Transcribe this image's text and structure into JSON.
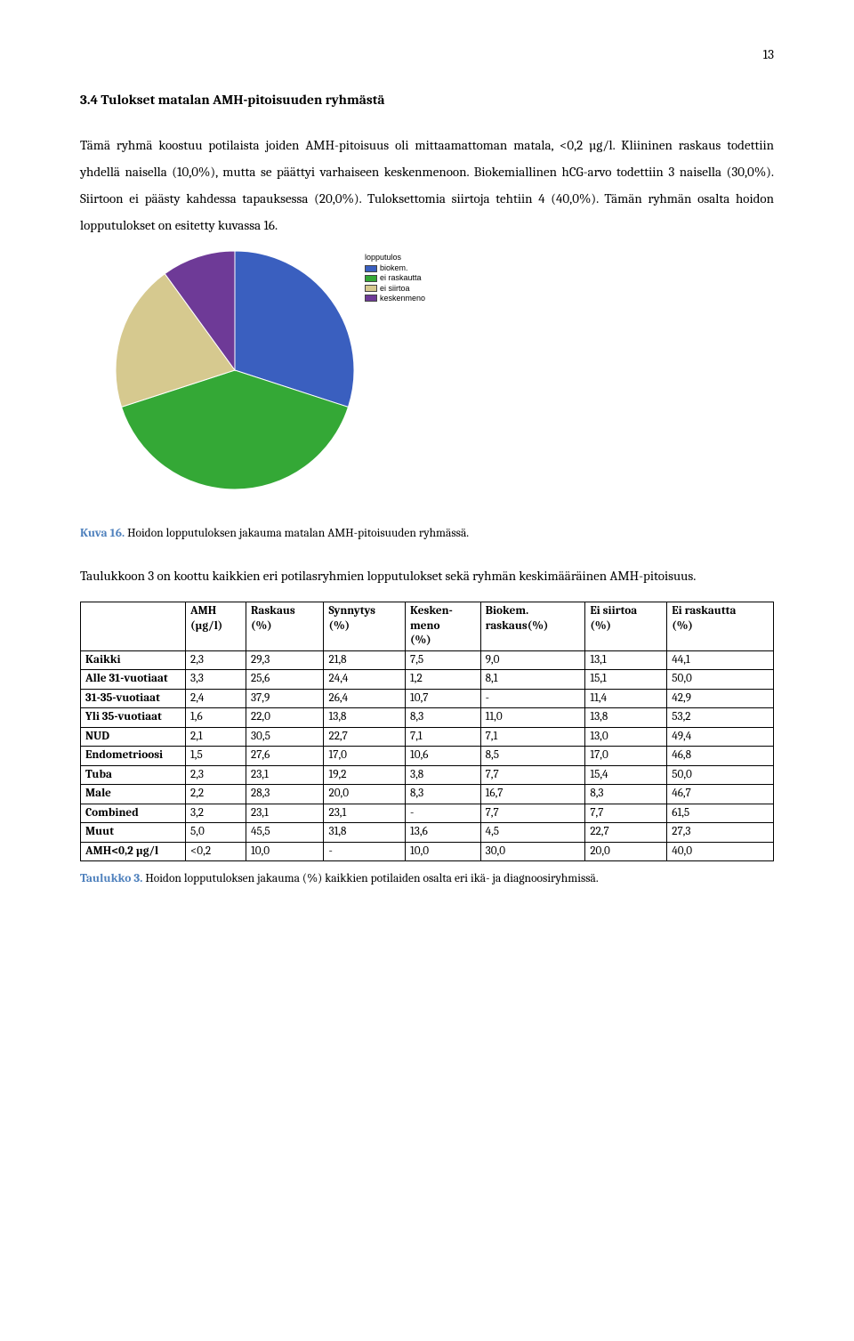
{
  "page_number": "13",
  "heading": "3.4 Tulokset matalan AMH-pitoisuuden ryhmästä",
  "paragraph1": "Tämä ryhmä koostuu potilaista joiden AMH-pitoisuus oli mittaamattoman matala, <0,2 µg/l. Kliininen raskaus todettiin yhdellä naisella (10,0%), mutta se päättyi varhaiseen keskenmenoon. Biokemiallinen hCG-arvo todettiin 3 naisella (30,0%). Siirtoon ei päästy kahdessa tapauksessa (20,0%). Tuloksettomia siirtoja tehtiin 4 (40,0%). Tämän ryhmän osalta hoidon lopputulokset on esitetty kuvassa 16.",
  "pie": {
    "size": 268,
    "slices": [
      {
        "label": "biokem.",
        "value": 30,
        "color": "#3a5fbf"
      },
      {
        "label": "ei raskautta",
        "value": 40,
        "color": "#34a836"
      },
      {
        "label": "ei siirtoa",
        "value": 20,
        "color": "#d6c98f"
      },
      {
        "label": "keskenmeno",
        "value": 10,
        "color": "#6e3a97"
      }
    ],
    "legend_title": "lopputulos",
    "start_angle_deg": -90,
    "stroke": "#ffffff",
    "stroke_width": 1
  },
  "fig_caption_label": "Kuva 16.",
  "fig_caption_text": " Hoidon lopputuloksen jakauma matalan AMH-pitoisuuden ryhmässä.",
  "paragraph2": "Taulukkoon 3 on koottu kaikkien eri potilasryhmien lopputulokset sekä ryhmän keskimääräinen AMH-pitoisuus.",
  "table": {
    "columns": [
      "",
      "AMH (µg/l)",
      "Raskaus (%)",
      "Synnytys (%)",
      "Kesken-meno (%)",
      "Biokem. raskaus(%)",
      "Ei siirtoa (%)",
      "Ei raskautta (%)"
    ],
    "rows": [
      [
        "Kaikki",
        "2,3",
        "29,3",
        "21,8",
        "7,5",
        "9,0",
        "13,1",
        "44,1"
      ],
      [
        "Alle 31-vuotiaat",
        "3,3",
        "25,6",
        "24,4",
        "1,2",
        "8,1",
        "15,1",
        "50,0"
      ],
      [
        "31-35-vuotiaat",
        "2,4",
        "37,9",
        "26,4",
        "10,7",
        "-",
        "11,4",
        "42,9"
      ],
      [
        "Yli 35-vuotiaat",
        "1,6",
        "22,0",
        "13,8",
        "8,3",
        "11,0",
        "13,8",
        "53,2"
      ],
      [
        "NUD",
        "2,1",
        "30,5",
        "22,7",
        "7,1",
        "7,1",
        "13,0",
        "49,4"
      ],
      [
        "Endometrioosi",
        "1,5",
        "27,6",
        "17,0",
        "10,6",
        "8,5",
        "17,0",
        "46,8"
      ],
      [
        "Tuba",
        "2,3",
        "23,1",
        "19,2",
        "3,8",
        "7,7",
        "15,4",
        "50,0"
      ],
      [
        "Male",
        "2,2",
        "28,3",
        "20,0",
        "8,3",
        "16,7",
        "8,3",
        "46,7"
      ],
      [
        "Combined",
        "3,2",
        "23,1",
        "23,1",
        "-",
        "7,7",
        "7,7",
        "61,5"
      ],
      [
        "Muut",
        "5,0",
        "45,5",
        "31,8",
        "13,6",
        "4,5",
        "22,7",
        "27,3"
      ],
      [
        "AMH<0,2 µg/l",
        "<0,2",
        "10,0",
        "-",
        "10,0",
        "30,0",
        "20,0",
        "40,0"
      ]
    ]
  },
  "tbl_caption_label": "Taulukko 3.",
  "tbl_caption_text": " Hoidon lopputuloksen jakauma (%) kaikkien potilaiden osalta eri ikä- ja diagnoosiryhmissä."
}
